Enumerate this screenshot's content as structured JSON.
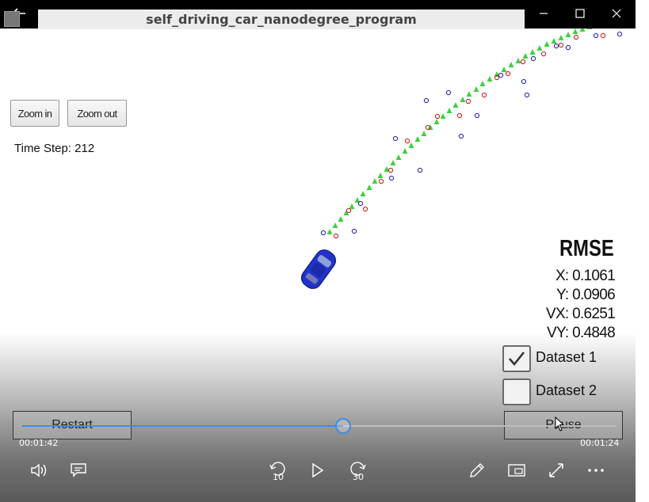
{
  "window": {
    "title": "self_driving_car_nanodegree_program"
  },
  "simulator": {
    "zoom_in_label": "Zoom in",
    "zoom_out_label": "Zoom out",
    "time_step_text": "Time Step: 212",
    "rmse": {
      "title": "RMSE",
      "x": "X: 0.1061",
      "y": "Y: 0.0906",
      "vx": "VX: 0.6251",
      "vy": "VY: 0.4848"
    },
    "datasets": [
      {
        "label": "Dataset 1",
        "checked": true
      },
      {
        "label": "Dataset 2",
        "checked": false
      }
    ],
    "restart_label": "Restart",
    "pause_label": "Pause",
    "colors": {
      "ground_truth": "#3ed13e",
      "lidar": "#cc2222",
      "radar": "#2a2ab8",
      "car": "#2233cc"
    }
  },
  "player": {
    "elapsed": "00:01:42",
    "remaining": "00:01:24",
    "progress": 0.54,
    "accent": "#3d8ee8"
  }
}
